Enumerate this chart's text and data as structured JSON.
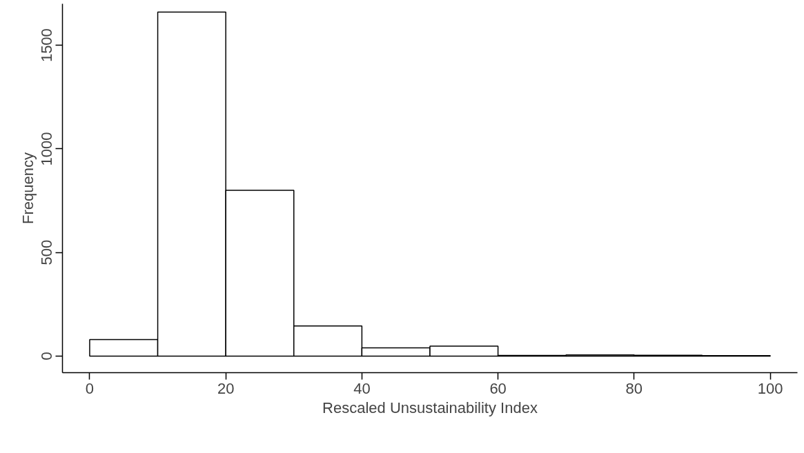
{
  "chart_data": {
    "type": "histogram",
    "xlabel": "Rescaled Unsustainability Index",
    "ylabel": "Frequency",
    "bins": [
      0,
      10,
      20,
      30,
      40,
      50,
      60,
      70,
      80,
      90,
      100
    ],
    "values": [
      80,
      1660,
      800,
      145,
      40,
      48,
      3,
      6,
      4,
      2
    ],
    "color": "#ffffff",
    "xlim": [
      -4,
      104
    ],
    "ylim": [
      -80,
      1700
    ],
    "xticks": [
      0,
      20,
      40,
      60,
      80,
      100
    ],
    "yticks": [
      0,
      500,
      1000,
      1500
    ],
    "grid": false
  }
}
